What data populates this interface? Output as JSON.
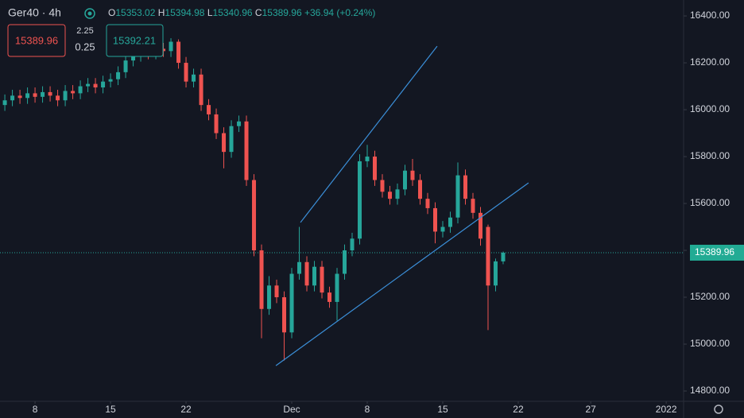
{
  "chart_data": {
    "type": "candlestick",
    "title": "Ger40 · 4h",
    "x": [
      -2,
      -1.5,
      -1,
      -0.5,
      0,
      0.5,
      1,
      1.5,
      2,
      2.5,
      3,
      3.5,
      4,
      4.5,
      5,
      5.5,
      6,
      6.5,
      7,
      7.5,
      8,
      8.5,
      9,
      9.5,
      10,
      10.5,
      11,
      11.5,
      12,
      12.5,
      13,
      13.5,
      14,
      14.5,
      15,
      15.5,
      16,
      16.5,
      17,
      17.5,
      18,
      18.5,
      19,
      19.5,
      20,
      20.5,
      21,
      21.5,
      22,
      22.5,
      23,
      23.5,
      24,
      24.5,
      25,
      25.5,
      26,
      26.5,
      27,
      27.5,
      28,
      28.5,
      29,
      29.5,
      30,
      30.5,
      31
    ],
    "open": [
      16020,
      16040,
      16060,
      16050,
      16070,
      16055,
      16075,
      16060,
      16040,
      16080,
      16070,
      16100,
      16110,
      16095,
      16120,
      16130,
      16160,
      16210,
      16230,
      16250,
      16240,
      16260,
      16250,
      16290,
      16200,
      16120,
      16150,
      16020,
      15980,
      15900,
      15820,
      15930,
      15950,
      15700,
      15400,
      15150,
      15250,
      15200,
      15050,
      15300,
      15350,
      15250,
      15330,
      15220,
      15180,
      15300,
      15400,
      15450,
      15780,
      15800,
      15700,
      15650,
      15620,
      15660,
      15740,
      15700,
      15620,
      15580,
      15480,
      15500,
      15540,
      15720,
      15620,
      15560,
      15500,
      15250,
      15353.02
    ],
    "high": [
      16065,
      16085,
      16085,
      16095,
      16095,
      16100,
      16100,
      16085,
      16105,
      16105,
      16125,
      16135,
      16135,
      16145,
      16155,
      16185,
      16235,
      16255,
      16275,
      16275,
      16285,
      16285,
      16305,
      16300,
      16225,
      16175,
      16175,
      16045,
      16005,
      15925,
      15955,
      15975,
      15975,
      15725,
      15425,
      15290,
      15275,
      15225,
      15325,
      15500,
      15375,
      15355,
      15355,
      15245,
      15325,
      15425,
      15475,
      15810,
      15850,
      15825,
      15725,
      15675,
      15685,
      15765,
      15790,
      15725,
      15645,
      15605,
      15525,
      15565,
      15775,
      15745,
      15645,
      15585,
      15510,
      15365,
      15394.98
    ],
    "low": [
      15995,
      16015,
      16025,
      16025,
      16030,
      16030,
      16035,
      16015,
      16015,
      16045,
      16045,
      16075,
      16070,
      16070,
      16095,
      16105,
      16135,
      16185,
      16205,
      16215,
      16215,
      16225,
      16225,
      16175,
      16095,
      16095,
      15995,
      15955,
      15875,
      15750,
      15795,
      15905,
      15675,
      15375,
      15025,
      15125,
      15175,
      14930,
      15025,
      15275,
      15225,
      15225,
      15195,
      15155,
      15100,
      15275,
      15375,
      15425,
      15755,
      15675,
      15625,
      15595,
      15595,
      15635,
      15675,
      15595,
      15555,
      15430,
      15455,
      15475,
      15515,
      15595,
      15535,
      15420,
      15060,
      15225,
      15340.96
    ],
    "close": [
      16040,
      16060,
      16050,
      16070,
      16055,
      16075,
      16060,
      16040,
      16080,
      16070,
      16100,
      16110,
      16095,
      16120,
      16130,
      16160,
      16210,
      16230,
      16250,
      16240,
      16260,
      16250,
      16290,
      16200,
      16120,
      16150,
      16020,
      15980,
      15900,
      15820,
      15930,
      15950,
      15700,
      15400,
      15150,
      15250,
      15200,
      15050,
      15300,
      15350,
      15250,
      15330,
      15220,
      15180,
      15300,
      15400,
      15450,
      15780,
      15800,
      15700,
      15650,
      15620,
      15660,
      15740,
      15700,
      15620,
      15580,
      15480,
      15500,
      15540,
      15720,
      15620,
      15560,
      15450,
      15250,
      15353.02,
      15389.96
    ],
    "up_color": "#26a69a",
    "down_color": "#ef5350",
    "xlim": [
      -2.32,
      42.95
    ],
    "xticks": [
      {
        "value": 0,
        "label": "8"
      },
      {
        "value": 5,
        "label": "15"
      },
      {
        "value": 10,
        "label": "22"
      },
      {
        "value": 17,
        "label": "Dec"
      },
      {
        "value": 22,
        "label": "8"
      },
      {
        "value": 27,
        "label": "15"
      },
      {
        "value": 32,
        "label": "22"
      },
      {
        "value": 36.8,
        "label": "27"
      },
      {
        "value": 41.8,
        "label": "2022"
      }
    ],
    "ylim": [
      14756,
      16468
    ],
    "yticks": [
      {
        "value": 14800,
        "label": "14800.00"
      },
      {
        "value": 15000,
        "label": "15000.00"
      },
      {
        "value": 15200,
        "label": "15200.00"
      },
      {
        "value": 15400,
        "label": "15400.00"
      },
      {
        "value": 15600,
        "label": "15600.00"
      },
      {
        "value": 15800,
        "label": "15800.00"
      },
      {
        "value": 16000,
        "label": "16000.00"
      },
      {
        "value": 16200,
        "label": "16200.00"
      },
      {
        "value": 16400,
        "label": "16400.00"
      }
    ],
    "grid": false,
    "trendlines": [
      {
        "color": "#3b8fd9",
        "x": [
          17.58,
          26.63
        ],
        "y": [
          15519,
          16271
        ]
      },
      {
        "color": "#3b8fd9",
        "x": [
          15.95,
          32.68
        ],
        "y": [
          14908,
          15688
        ]
      }
    ],
    "ohlc_labels": [
      "O",
      "H",
      "L",
      "C"
    ],
    "change": "+36.94 (+0.24%)"
  },
  "trading_panel": {
    "sell": "15389.96",
    "spread_top": "2.25",
    "spread": "0.25",
    "buy": "15392.21"
  }
}
